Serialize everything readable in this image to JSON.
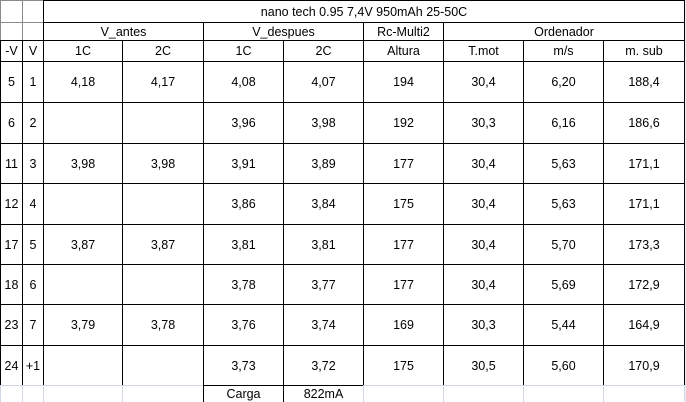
{
  "header": {
    "title": "nano tech 0.95 7,4V 950mAh 25-50C",
    "groups": [
      "V_antes",
      "V_despues",
      "Rc-Multi2",
      "Ordenador"
    ],
    "columns": [
      "-V",
      "V",
      "1C",
      "2C",
      "1C",
      "2C",
      "Altura",
      "T.mot",
      "m/s",
      "m. sub"
    ]
  },
  "table": {
    "rows": [
      [
        "5",
        "1",
        "4,18",
        "4,17",
        "4,08",
        "4,07",
        "194",
        "30,4",
        "6,20",
        "188,4"
      ],
      [
        "6",
        "2",
        null,
        null,
        "3,96",
        "3,98",
        "192",
        "30,3",
        "6,16",
        "186,6"
      ],
      [
        "11",
        "3",
        "3,98",
        "3,98",
        "3,91",
        "3,89",
        "177",
        "30,4",
        "5,63",
        "171,1"
      ],
      [
        "12",
        "4",
        null,
        null,
        "3,86",
        "3,84",
        "175",
        "30,4",
        "5,63",
        "171,1"
      ],
      [
        "17",
        "5",
        "3,87",
        "3,87",
        "3,81",
        "3,81",
        "177",
        "30,4",
        "5,70",
        "173,3"
      ],
      [
        "18",
        "6",
        null,
        null,
        "3,78",
        "3,77",
        "177",
        "30,4",
        "5,69",
        "172,9"
      ],
      [
        "23",
        "7",
        "3,79",
        "3,78",
        "3,76",
        "3,74",
        "169",
        "30,3",
        "5,44",
        "164,9"
      ],
      [
        "24",
        "+1",
        null,
        null,
        "3,73",
        "3,72",
        "175",
        "30,5",
        "5,60",
        "170,9"
      ]
    ]
  },
  "footer": {
    "label": "Carga",
    "value": "822mA"
  }
}
